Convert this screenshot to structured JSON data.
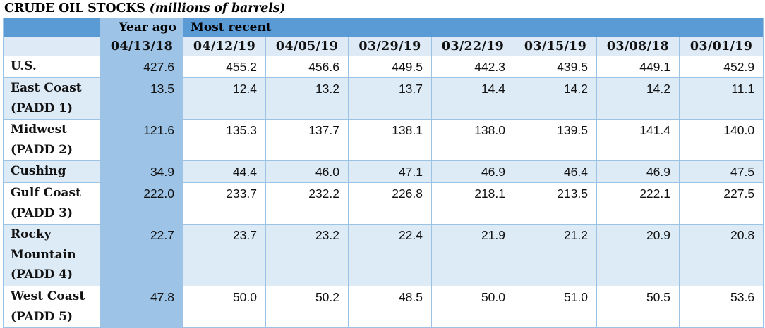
{
  "title": {
    "main": "CRUDE OIL STOCKS",
    "sub": "(millions of barrels)"
  },
  "header": {
    "year_ago_label": "Year ago",
    "most_recent_label": "Most recent",
    "dates": [
      "04/13/18",
      "04/12/19",
      "04/05/19",
      "03/29/19",
      "03/22/19",
      "03/15/19",
      "03/08/18",
      "03/01/19"
    ]
  },
  "rows": [
    {
      "lines": [
        "U.S."
      ],
      "values": [
        "427.6",
        "455.2",
        "456.6",
        "449.5",
        "442.3",
        "439.5",
        "449.1",
        "452.9"
      ]
    },
    {
      "lines": [
        "East Coast",
        "(PADD 1)"
      ],
      "values": [
        "13.5",
        "12.4",
        "13.2",
        "13.7",
        "14.4",
        "14.2",
        "14.2",
        "11.1"
      ]
    },
    {
      "lines": [
        "Midwest",
        "(PADD 2)"
      ],
      "values": [
        "121.6",
        "135.3",
        "137.7",
        "138.1",
        "138.0",
        "139.5",
        "141.4",
        "140.0"
      ]
    },
    {
      "lines": [
        "Cushing"
      ],
      "values": [
        "34.9",
        "44.4",
        "46.0",
        "47.1",
        "46.9",
        "46.4",
        "46.9",
        "47.5"
      ]
    },
    {
      "lines": [
        "Gulf Coast",
        "(PADD 3)"
      ],
      "values": [
        "222.0",
        "233.7",
        "232.2",
        "226.8",
        "218.1",
        "213.5",
        "222.1",
        "227.5"
      ]
    },
    {
      "lines": [
        "Rocky",
        "Mountain",
        "(PADD 4)"
      ],
      "values": [
        "22.7",
        "23.7",
        "23.2",
        "22.4",
        "21.9",
        "21.2",
        "20.9",
        "20.8"
      ]
    },
    {
      "lines": [
        "West Coast",
        "(PADD 5)"
      ],
      "values": [
        "47.8",
        "50.0",
        "50.2",
        "48.5",
        "50.0",
        "51.0",
        "50.5",
        "53.6"
      ]
    }
  ],
  "colors": {
    "header_blue": "#5b9bd5",
    "year_ago_column": "#9dc3e6",
    "alt_row": "#ddebf7",
    "border": "#9cc2e5"
  }
}
